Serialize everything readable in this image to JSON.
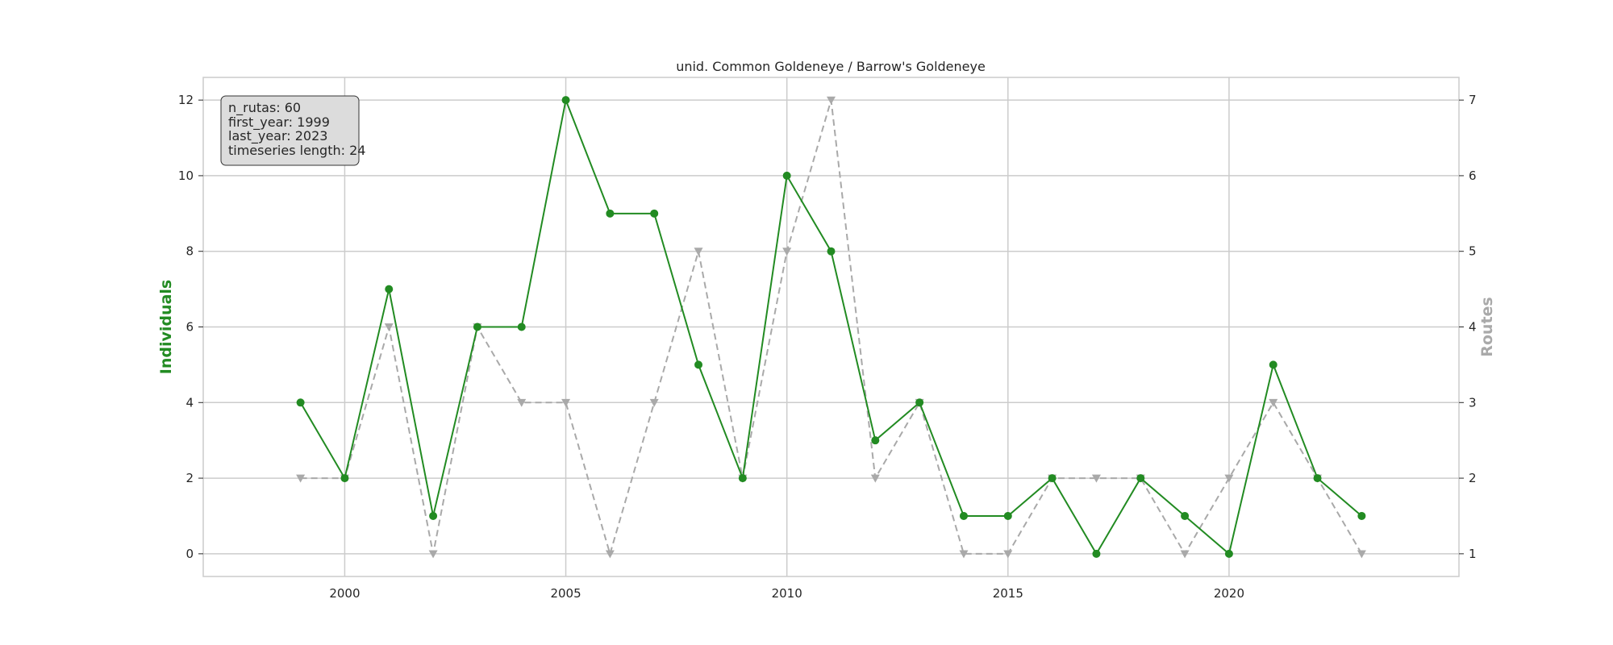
{
  "chart_data": {
    "type": "line",
    "title": "unid. Common Goldeneye / Barrow's Goldeneye",
    "ylabel": "Individuals",
    "ylabel_right": "Routes",
    "xlabel": "",
    "x": [
      1999,
      2000,
      2001,
      2002,
      2003,
      2004,
      2005,
      2006,
      2007,
      2008,
      2009,
      2010,
      2011,
      2012,
      2013,
      2014,
      2015,
      2016,
      2017,
      2018,
      2019,
      2020,
      2021,
      2022,
      2023
    ],
    "xticks": [
      "2000",
      "2005",
      "2010",
      "2015",
      "2020"
    ],
    "xlim": [
      1996.8,
      2025.2
    ],
    "ylim": [
      -0.6,
      12.6
    ],
    "ylim_right": [
      0.7,
      7.3
    ],
    "yticks_left": [
      "0",
      "2",
      "4",
      "6",
      "8",
      "10",
      "12"
    ],
    "yticks_right": [
      "1",
      "2",
      "3",
      "4",
      "5",
      "6",
      "7"
    ],
    "grid": true,
    "series": [
      {
        "name": "Individuals",
        "axis": "left",
        "color": "#228b22",
        "style": "solid",
        "marker": "circle",
        "values": [
          4,
          2,
          7,
          1,
          6,
          6,
          12,
          9,
          9,
          5,
          2,
          10,
          8,
          3,
          4,
          1,
          1,
          2,
          0,
          2,
          1,
          0,
          5,
          2,
          1
        ]
      },
      {
        "name": "Routes",
        "axis": "right",
        "color": "#a9a9a9",
        "style": "dashed",
        "marker": "triangle-down",
        "values": [
          2,
          2,
          4,
          1,
          4,
          3,
          3,
          1,
          3,
          5,
          2,
          5,
          7,
          2,
          3,
          1,
          1,
          2,
          2,
          2,
          1,
          2,
          3,
          2,
          1
        ]
      }
    ],
    "info_box": {
      "placement": "top-left",
      "lines": [
        "n_rutas: 60",
        "first_year: 1999",
        "last_year: 2023",
        "timeseries length: 24"
      ]
    }
  },
  "colors": {
    "individuals": "#228b22",
    "routes": "#a9a9a9",
    "grid": "#cccccc",
    "frame": "#cccccc",
    "info_bg": "#dcdcdc"
  }
}
